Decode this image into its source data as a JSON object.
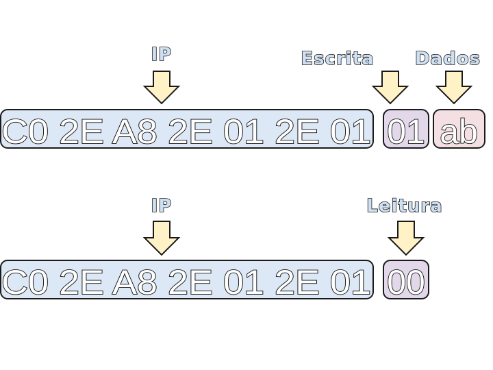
{
  "write_frame": {
    "ip_label": "IP",
    "write_label": "Escrita",
    "data_label": "Dados",
    "ip_bytes": "C0 2E A8 2E 01 2E 01",
    "command_byte": "01",
    "data_byte": "ab"
  },
  "read_frame": {
    "ip_label": "IP",
    "read_label": "Leitura",
    "ip_bytes": "C0 2E A8 2E 01 2E 01",
    "command_byte": "00"
  },
  "colors": {
    "ip_box": "#dce8f5",
    "command_box": "#e2d8ea",
    "data_box": "#f4dfe3",
    "arrow": "#fff2c6",
    "label_fill": "#cfe0f3"
  }
}
